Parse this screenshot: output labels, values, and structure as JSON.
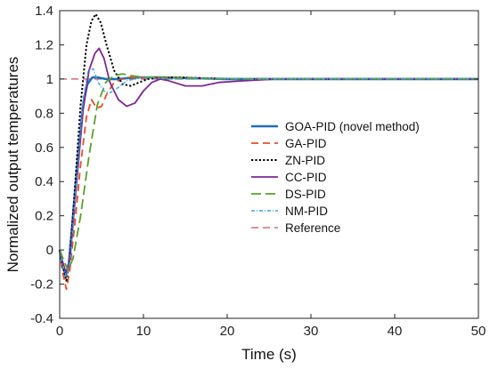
{
  "chart_data": {
    "type": "line",
    "xlabel": "Time (s)",
    "ylabel": "Normalized output temperatures",
    "xlim": [
      0,
      50
    ],
    "ylim": [
      -0.4,
      1.4
    ],
    "xticks": [
      0,
      10,
      20,
      30,
      40,
      50
    ],
    "yticks": [
      -0.4,
      -0.2,
      0,
      0.2,
      0.4,
      0.6,
      0.8,
      1,
      1.2,
      1.4
    ],
    "yticklabels": [
      "-0.4",
      "-0.2",
      "0",
      "0.2",
      "0.4",
      "0.6",
      "0.8",
      "1",
      "1.2",
      "1.4"
    ],
    "grid": false,
    "legend_position": "center-right",
    "series": [
      {
        "name": "GOA-PID (novel method)",
        "color": "#1f6fb5",
        "style": "solid",
        "width": 2.6,
        "points": [
          [
            0,
            0
          ],
          [
            0.3,
            -0.08
          ],
          [
            0.7,
            -0.15
          ],
          [
            1.1,
            -0.08
          ],
          [
            1.6,
            0.2
          ],
          [
            2.2,
            0.55
          ],
          [
            2.8,
            0.85
          ],
          [
            3.3,
            0.97
          ],
          [
            3.9,
            1.01
          ],
          [
            4.5,
            1.01
          ],
          [
            5.5,
            1.0
          ],
          [
            7,
            1.0
          ],
          [
            9,
            1.01
          ],
          [
            12,
            1.01
          ],
          [
            20,
            1.0
          ],
          [
            50,
            1.0
          ]
        ]
      },
      {
        "name": "GA-PID",
        "color": "#e0502a",
        "style": "dash",
        "width": 1.8,
        "points": [
          [
            0,
            0
          ],
          [
            0.3,
            -0.12
          ],
          [
            0.8,
            -0.23
          ],
          [
            1.2,
            -0.12
          ],
          [
            1.8,
            0.15
          ],
          [
            2.5,
            0.5
          ],
          [
            3.2,
            0.78
          ],
          [
            3.8,
            0.88
          ],
          [
            4.4,
            0.83
          ],
          [
            5.0,
            0.84
          ],
          [
            5.6,
            0.91
          ],
          [
            6.5,
            0.98
          ],
          [
            8,
            1.01
          ],
          [
            10,
            1.01
          ],
          [
            12,
            1.01
          ],
          [
            20,
            1.0
          ],
          [
            50,
            1.0
          ]
        ]
      },
      {
        "name": "ZN-PID",
        "color": "#000000",
        "style": "dot",
        "width": 2.0,
        "points": [
          [
            0,
            0
          ],
          [
            0.3,
            -0.08
          ],
          [
            0.8,
            -0.18
          ],
          [
            1.2,
            -0.05
          ],
          [
            1.8,
            0.35
          ],
          [
            2.5,
            0.85
          ],
          [
            3.2,
            1.2
          ],
          [
            3.8,
            1.34
          ],
          [
            4.3,
            1.38
          ],
          [
            4.9,
            1.33
          ],
          [
            5.6,
            1.2
          ],
          [
            6.5,
            1.05
          ],
          [
            7.5,
            0.97
          ],
          [
            8.5,
            0.96
          ],
          [
            9.5,
            0.98
          ],
          [
            10.5,
            1.0
          ],
          [
            12,
            1.01
          ],
          [
            14,
            1.01
          ],
          [
            20,
            1.0
          ],
          [
            50,
            1.0
          ]
        ]
      },
      {
        "name": "CC-PID",
        "color": "#7b2a8e",
        "style": "solid",
        "width": 1.8,
        "points": [
          [
            0,
            0
          ],
          [
            0.3,
            -0.06
          ],
          [
            0.8,
            -0.14
          ],
          [
            1.3,
            -0.02
          ],
          [
            2.0,
            0.38
          ],
          [
            2.8,
            0.82
          ],
          [
            3.5,
            1.05
          ],
          [
            4.2,
            1.15
          ],
          [
            4.7,
            1.18
          ],
          [
            5.3,
            1.12
          ],
          [
            6,
            0.98
          ],
          [
            7,
            0.88
          ],
          [
            8,
            0.84
          ],
          [
            9,
            0.86
          ],
          [
            10,
            0.93
          ],
          [
            11,
            0.98
          ],
          [
            12,
            1.0
          ],
          [
            13,
            0.99
          ],
          [
            15,
            0.96
          ],
          [
            17,
            0.96
          ],
          [
            19,
            0.98
          ],
          [
            22,
            0.99
          ],
          [
            26,
            1.0
          ],
          [
            50,
            1.0
          ]
        ]
      },
      {
        "name": "DS-PID",
        "color": "#5aa02c",
        "style": "longdash",
        "width": 1.8,
        "points": [
          [
            0,
            0
          ],
          [
            0.4,
            -0.05
          ],
          [
            1.0,
            -0.12
          ],
          [
            1.6,
            -0.05
          ],
          [
            2.5,
            0.2
          ],
          [
            3.5,
            0.55
          ],
          [
            4.5,
            0.85
          ],
          [
            5.5,
            0.98
          ],
          [
            6.5,
            1.02
          ],
          [
            7.5,
            1.03
          ],
          [
            8.5,
            1.02
          ],
          [
            10,
            1.01
          ],
          [
            12,
            1.01
          ],
          [
            20,
            1.0
          ],
          [
            50,
            1.0
          ]
        ]
      },
      {
        "name": "NM-PID",
        "color": "#3aa6dd",
        "style": "dashdot",
        "width": 1.4,
        "points": [
          [
            0,
            0
          ],
          [
            0.3,
            -0.08
          ],
          [
            0.8,
            -0.16
          ],
          [
            1.3,
            -0.05
          ],
          [
            2.0,
            0.4
          ],
          [
            2.8,
            0.88
          ],
          [
            3.4,
            1.05
          ],
          [
            4.0,
            1.06
          ],
          [
            4.6,
            0.98
          ],
          [
            5.3,
            0.93
          ],
          [
            6.0,
            0.92
          ],
          [
            7.0,
            0.95
          ],
          [
            8,
            0.99
          ],
          [
            10,
            1.01
          ],
          [
            13,
            1.0
          ],
          [
            50,
            1.0
          ]
        ]
      },
      {
        "name": "Reference",
        "color": "#c05060",
        "style": "dash",
        "width": 1.3,
        "points": [
          [
            0,
            1
          ],
          [
            50,
            1
          ]
        ]
      }
    ]
  }
}
